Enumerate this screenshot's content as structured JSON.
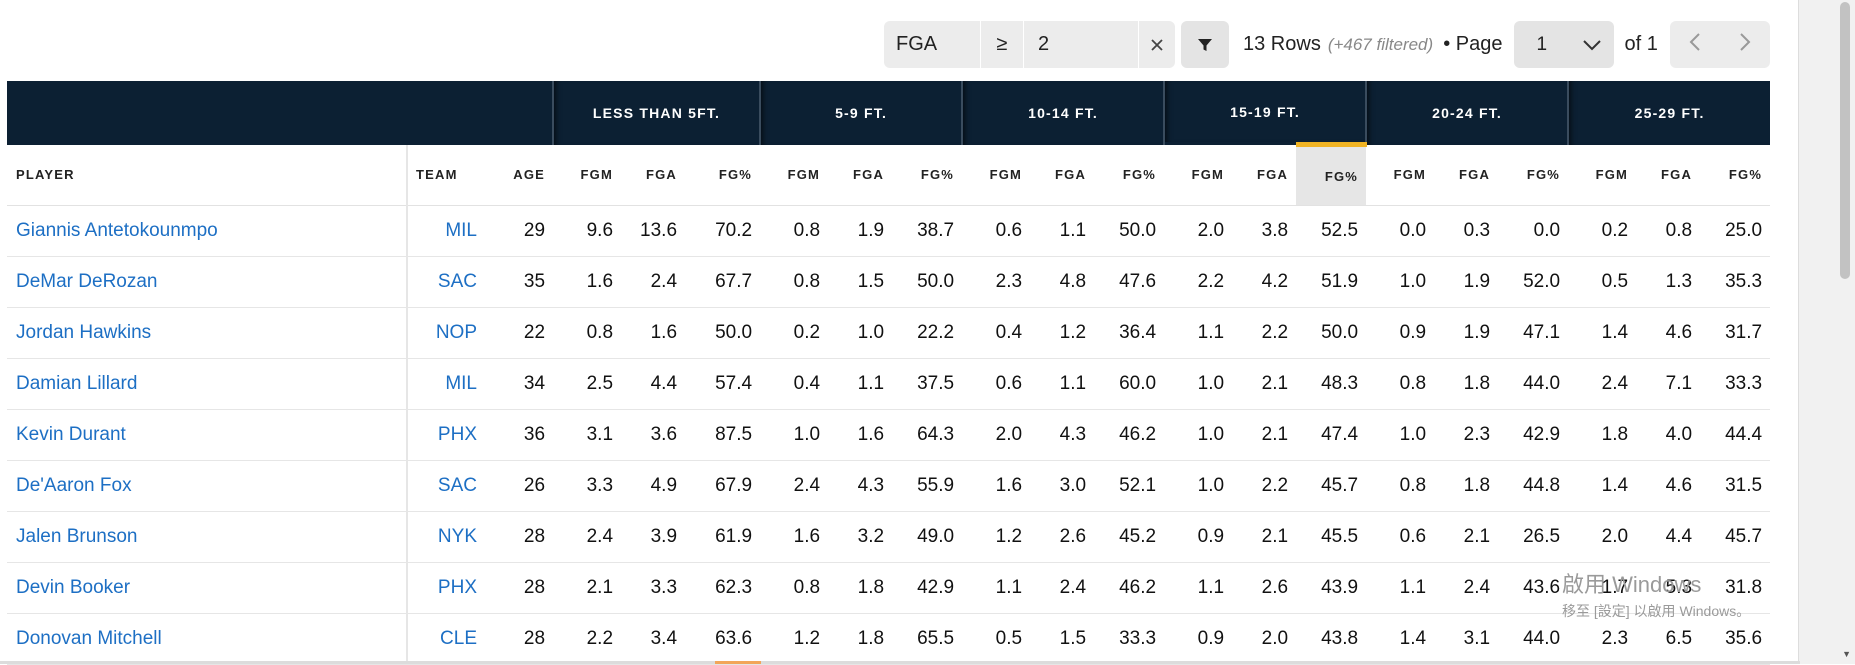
{
  "toolbar": {
    "filter_field": "FGA",
    "filter_operator": "≥",
    "filter_value": "2",
    "rows_count": "13 Rows",
    "rows_filtered": "(+467 filtered)",
    "page_label": "• Page",
    "page_value": "1",
    "page_of": "of 1",
    "icons": {
      "clear": "close-icon",
      "filter": "filter-icon",
      "dropdown": "chevron-down-icon",
      "prev": "chevron-left-icon",
      "next": "chevron-right-icon"
    }
  },
  "table": {
    "groups": [
      "LESS THAN 5FT.",
      "5-9 FT.",
      "10-14 FT.",
      "15-19 FT.",
      "20-24 FT.",
      "25-29 FT."
    ],
    "columns": [
      "PLAYER",
      "TEAM",
      "AGE",
      "FGM",
      "FGA",
      "FG%",
      "FGM",
      "FGA",
      "FG%",
      "FGM",
      "FGA",
      "FG%",
      "FGM",
      "FGA",
      "FG%",
      "FGM",
      "FGA",
      "FG%",
      "FGM",
      "FGA",
      "FG%"
    ],
    "sorted_column": "15-19 FT. FG%",
    "rows": [
      [
        "Giannis Antetokounmpo",
        "MIL",
        "29",
        "9.6",
        "13.6",
        "70.2",
        "0.8",
        "1.9",
        "38.7",
        "0.6",
        "1.1",
        "50.0",
        "2.0",
        "3.8",
        "52.5",
        "0.0",
        "0.3",
        "0.0",
        "0.2",
        "0.8",
        "25.0"
      ],
      [
        "DeMar DeRozan",
        "SAC",
        "35",
        "1.6",
        "2.4",
        "67.7",
        "0.8",
        "1.5",
        "50.0",
        "2.3",
        "4.8",
        "47.6",
        "2.2",
        "4.2",
        "51.9",
        "1.0",
        "1.9",
        "52.0",
        "0.5",
        "1.3",
        "35.3"
      ],
      [
        "Jordan Hawkins",
        "NOP",
        "22",
        "0.8",
        "1.6",
        "50.0",
        "0.2",
        "1.0",
        "22.2",
        "0.4",
        "1.2",
        "36.4",
        "1.1",
        "2.2",
        "50.0",
        "0.9",
        "1.9",
        "47.1",
        "1.4",
        "4.6",
        "31.7"
      ],
      [
        "Damian Lillard",
        "MIL",
        "34",
        "2.5",
        "4.4",
        "57.4",
        "0.4",
        "1.1",
        "37.5",
        "0.6",
        "1.1",
        "60.0",
        "1.0",
        "2.1",
        "48.3",
        "0.8",
        "1.8",
        "44.0",
        "2.4",
        "7.1",
        "33.3"
      ],
      [
        "Kevin Durant",
        "PHX",
        "36",
        "3.1",
        "3.6",
        "87.5",
        "1.0",
        "1.6",
        "64.3",
        "2.0",
        "4.3",
        "46.2",
        "1.0",
        "2.1",
        "47.4",
        "1.0",
        "2.3",
        "42.9",
        "1.8",
        "4.0",
        "44.4"
      ],
      [
        "De'Aaron Fox",
        "SAC",
        "26",
        "3.3",
        "4.9",
        "67.9",
        "2.4",
        "4.3",
        "55.9",
        "1.6",
        "3.0",
        "52.1",
        "1.0",
        "2.2",
        "45.7",
        "0.8",
        "1.8",
        "44.8",
        "1.4",
        "4.6",
        "31.5"
      ],
      [
        "Jalen Brunson",
        "NYK",
        "28",
        "2.4",
        "3.9",
        "61.9",
        "1.6",
        "3.2",
        "49.0",
        "1.2",
        "2.6",
        "45.2",
        "0.9",
        "2.1",
        "45.5",
        "0.6",
        "2.1",
        "26.5",
        "2.0",
        "4.4",
        "45.7"
      ],
      [
        "Devin Booker",
        "PHX",
        "28",
        "2.1",
        "3.3",
        "62.3",
        "0.8",
        "1.8",
        "42.9",
        "1.1",
        "2.4",
        "46.2",
        "1.1",
        "2.6",
        "43.9",
        "1.1",
        "2.4",
        "43.6",
        "1.7",
        "5.3",
        "31.8"
      ],
      [
        "Donovan Mitchell",
        "CLE",
        "28",
        "2.2",
        "3.4",
        "63.6",
        "1.2",
        "1.8",
        "65.5",
        "0.5",
        "1.5",
        "33.3",
        "0.9",
        "2.0",
        "43.8",
        "1.4",
        "3.1",
        "44.0",
        "2.3",
        "6.5",
        "35.6"
      ]
    ]
  },
  "watermark": {
    "line1": "啟用 Windows",
    "line2": "移至 [設定] 以啟用 Windows。"
  },
  "colors": {
    "header_bg": "#0c2033",
    "link": "#1d6fc4",
    "sort_accent": "#f0b323"
  }
}
